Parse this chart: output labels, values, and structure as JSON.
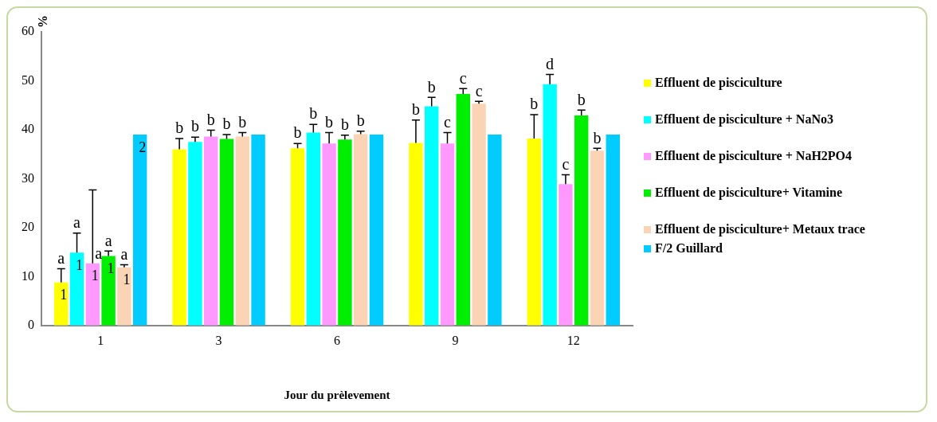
{
  "chart_data": {
    "type": "bar",
    "xlabel": "Jour du prèlevement",
    "ylabel": "%",
    "categories": [
      "1",
      "3",
      "6",
      "9",
      "12"
    ],
    "ylim": [
      0,
      60
    ],
    "yticks": [
      0,
      10,
      20,
      30,
      40,
      50,
      60
    ],
    "grid": false,
    "legend": "right",
    "series": [
      {
        "name": "Effluent de pisciculture",
        "color": "#ffff00",
        "values": [
          8.8,
          36.0,
          36.2,
          37.3,
          38.2
        ],
        "errors": [
          [
            8.8,
            11.6
          ],
          [
            36.0,
            38.2
          ],
          [
            36.2,
            37.2
          ],
          [
            37.3,
            42.0
          ],
          [
            38.2,
            43.1
          ]
        ],
        "value_labels": [
          "a",
          "b",
          "b",
          "b",
          "b"
        ]
      },
      {
        "name": "Effluent de pisciculture + NaNo3",
        "color": "#00ffff",
        "values": [
          14.9,
          37.5,
          39.4,
          44.8,
          49.3
        ],
        "errors": [
          [
            14.9,
            18.9
          ],
          [
            37.5,
            38.5
          ],
          [
            39.4,
            41.1
          ],
          [
            44.8,
            46.6
          ],
          [
            49.3,
            51.3
          ]
        ],
        "value_labels": [
          "a",
          "b",
          "b",
          "b",
          "d"
        ]
      },
      {
        "name": "Effluent de pisciculture + NaH2PO4",
        "color": "#ff99ff",
        "values": [
          12.7,
          38.6,
          37.2,
          37.2,
          28.9
        ],
        "errors": [
          [
            12.7,
            27.7
          ],
          [
            38.6,
            39.9
          ],
          [
            37.2,
            39.4
          ],
          [
            37.2,
            39.4
          ],
          [
            28.9,
            30.8
          ]
        ],
        "value_labels": [
          "a",
          "b",
          "b",
          "c",
          "c"
        ]
      },
      {
        "name": "Effluent de pisciculture+ Vitamine",
        "color": "#00ee00",
        "values": [
          14.2,
          38.1,
          38.0,
          47.3,
          42.9
        ],
        "errors": [
          [
            14.2,
            15.2
          ],
          [
            38.1,
            39.0
          ],
          [
            38.0,
            38.9
          ],
          [
            47.3,
            48.4
          ],
          [
            42.9,
            44.0
          ]
        ],
        "value_labels": [
          "a",
          "b",
          "b",
          "c",
          "b"
        ]
      },
      {
        "name": "Effluent de pisciculture+ Metaux trace",
        "color": "#fad4b4",
        "values": [
          11.9,
          38.6,
          39.1,
          45.3,
          35.7
        ],
        "errors": [
          [
            11.9,
            12.4
          ],
          [
            38.6,
            39.4
          ],
          [
            39.1,
            39.7
          ],
          [
            45.3,
            45.8
          ],
          [
            35.7,
            36.2
          ]
        ],
        "value_labels": [
          "a",
          "b",
          "b",
          "c",
          "b"
        ]
      },
      {
        "name": "F/2 Guillard",
        "color": "#00ccff",
        "values": [
          39,
          39,
          39,
          39,
          39
        ]
      }
    ],
    "annotations": [
      "1",
      "1",
      "1",
      "1",
      "1",
      "2"
    ]
  }
}
